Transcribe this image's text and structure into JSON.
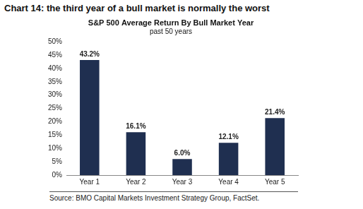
{
  "chart_data": {
    "type": "bar",
    "title": "Chart 14: the third year of a bull market is normally the worst",
    "subtitle": [
      "S&P 500 Average Return By Bull Market Year",
      "past 50 years"
    ],
    "annotations": [
      "Source: BMO Capital Markets Investment Strategy Group, FactSet."
    ],
    "categories": [
      "Year 1",
      "Year 2",
      "Year 3",
      "Year 4",
      "Year 5"
    ],
    "values": [
      43.2,
      16.1,
      6.0,
      12.1,
      21.4
    ],
    "value_labels": [
      "43.2%",
      "16.1%",
      "6.0%",
      "12.1%",
      "21.4%"
    ],
    "color": "#1f2f50",
    "ylim": [
      0,
      50
    ],
    "yticks": [
      {
        "value": 0,
        "label": "0%"
      },
      {
        "value": 5,
        "label": "5%"
      },
      {
        "value": 10,
        "label": "10%"
      },
      {
        "value": 15,
        "label": "15%"
      },
      {
        "value": 20,
        "label": "20%"
      },
      {
        "value": 25,
        "label": "25%"
      },
      {
        "value": 30,
        "label": "30%"
      },
      {
        "value": 35,
        "label": "35%"
      },
      {
        "value": 40,
        "label": "40%"
      },
      {
        "value": 45,
        "label": "45%"
      },
      {
        "value": 50,
        "label": "50%"
      }
    ],
    "grid": false,
    "data_labels": true
  }
}
